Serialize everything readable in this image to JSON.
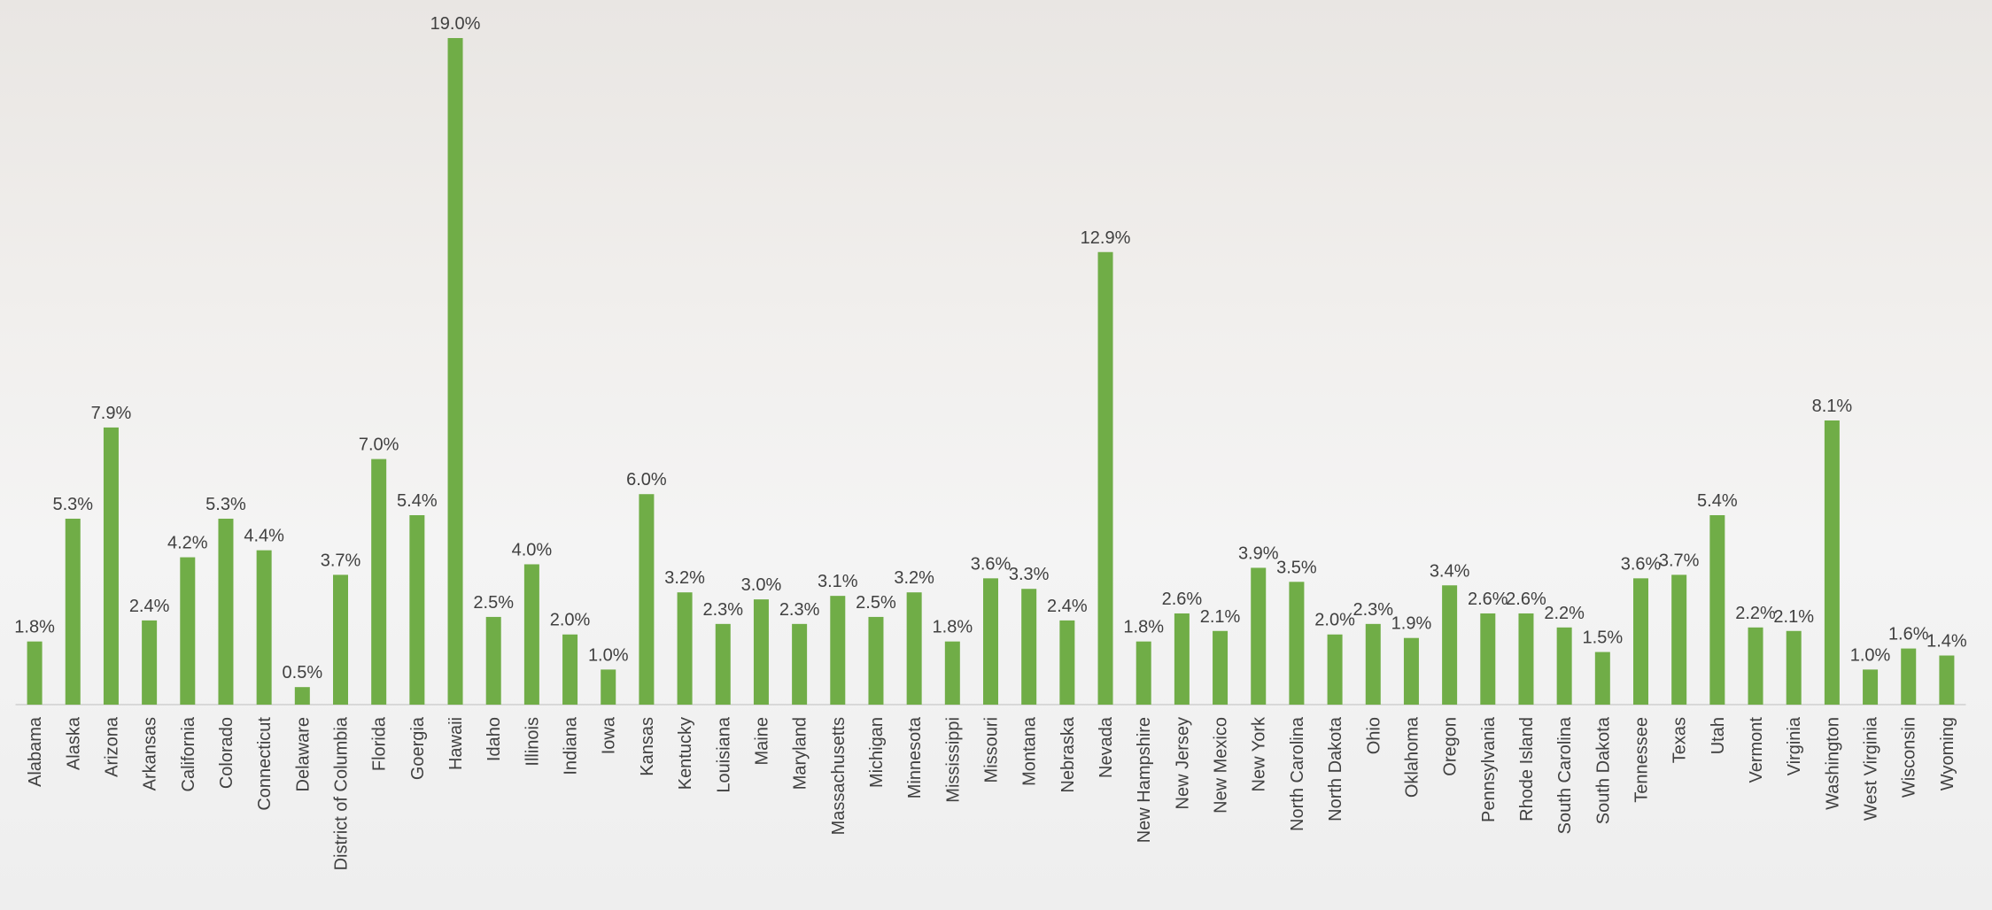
{
  "chart_data": {
    "type": "bar",
    "categories": [
      "Alabama",
      "Alaska",
      "Arizona",
      "Arkansas",
      "California",
      "Colorado",
      "Connecticut",
      "Delaware",
      "District of Columbia",
      "Florida",
      "Goergia",
      "Hawaii",
      "Idaho",
      "Illinois",
      "Indiana",
      "Iowa",
      "Kansas",
      "Kentucky",
      "Louisiana",
      "Maine",
      "Maryland",
      "Massachusetts",
      "Michigan",
      "Minnesota",
      "Mississippi",
      "Missouri",
      "Montana",
      "Nebraska",
      "Nevada",
      "New Hampshire",
      "New Jersey",
      "New Mexico",
      "New York",
      "North Carolina",
      "North Dakota",
      "Ohio",
      "Oklahoma",
      "Oregon",
      "Pennsylvania",
      "Rhode Island",
      "South Carolina",
      "South Dakota",
      "Tennessee",
      "Texas",
      "Utah",
      "Vermont",
      "Virginia",
      "Washington",
      "West Virginia",
      "Wisconsin",
      "Wyoming"
    ],
    "values": [
      1.8,
      5.3,
      7.9,
      2.4,
      4.2,
      5.3,
      4.4,
      0.5,
      3.7,
      7.0,
      5.4,
      19.0,
      2.5,
      4.0,
      2.0,
      1.0,
      6.0,
      3.2,
      2.3,
      3.0,
      2.3,
      3.1,
      2.5,
      3.2,
      1.8,
      3.6,
      3.3,
      2.4,
      12.9,
      1.8,
      2.6,
      2.1,
      3.9,
      3.5,
      2.0,
      2.3,
      1.9,
      3.4,
      2.6,
      2.6,
      2.2,
      1.5,
      3.6,
      3.7,
      5.4,
      2.2,
      2.1,
      8.1,
      1.0,
      1.6,
      1.4
    ],
    "value_labels": [
      "1.8%",
      "5.3%",
      "7.9%",
      "2.4%",
      "4.2%",
      "5.3%",
      "4.4%",
      "0.5%",
      "3.7%",
      "7.0%",
      "5.4%",
      "19.0%",
      "2.5%",
      "4.0%",
      "2.0%",
      "1.0%",
      "6.0%",
      "3.2%",
      "2.3%",
      "3.0%",
      "2.3%",
      "3.1%",
      "2.5%",
      "3.2%",
      "1.8%",
      "3.6%",
      "3.3%",
      "2.4%",
      "12.9%",
      "1.8%",
      "2.6%",
      "2.1%",
      "3.9%",
      "3.5%",
      "2.0%",
      "2.3%",
      "1.9%",
      "3.4%",
      "2.6%",
      "2.6%",
      "2.2%",
      "1.5%",
      "3.6%",
      "3.7%",
      "5.4%",
      "2.2%",
      "2.1%",
      "8.1%",
      "1.0%",
      "1.6%",
      "1.4%"
    ],
    "color": "#70ad47"
  }
}
